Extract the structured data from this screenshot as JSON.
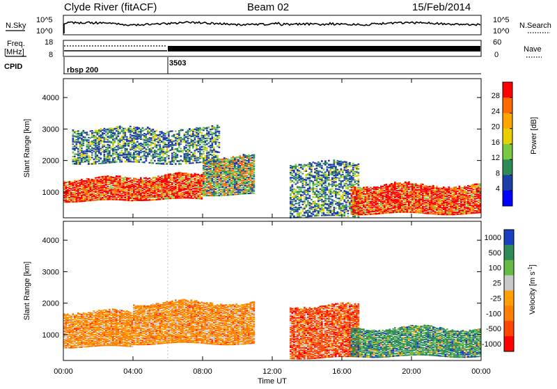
{
  "header": {
    "title": "Clyde River (fitACF)",
    "beam": "Beam 02",
    "date": "15/Feb/2014"
  },
  "top_panels": {
    "nsky_label": "N.Sky",
    "nsearch_label": "N.Search",
    "noise_ticks_left": [
      "10^5",
      "10^0"
    ],
    "noise_ticks_right": [
      "10^5",
      "10^0"
    ],
    "freq_label_line1": "Freq.",
    "freq_label_line2": "[MHz]",
    "freq_ticks": [
      "18",
      "8"
    ],
    "nave_label": "Nave",
    "nave_ticks": [
      "60",
      "0"
    ],
    "cpid_label": "CPID",
    "cpid_segments": [
      "rbsp 200",
      "3503"
    ]
  },
  "chart_data": [
    {
      "type": "heatmap",
      "title": "",
      "ylabel": "Slant Range [km]",
      "xlabel": "",
      "xlim": [
        "00:00",
        "24:00"
      ],
      "ylim": [
        180,
        4600
      ],
      "yticks": [
        "1000",
        "2000",
        "3000",
        "4000"
      ],
      "colorbar": {
        "label": "Power [dB]",
        "ticks": [
          "28",
          "24",
          "20",
          "16",
          "12",
          "8",
          "4"
        ],
        "colors": [
          "#ff0000",
          "#ff6a00",
          "#ffa500",
          "#e8d000",
          "#7ac943",
          "#2e8b57",
          "#1e3fa8",
          "#0000ff"
        ]
      },
      "regions": [
        {
          "x": [
            0.0,
            4.0
          ],
          "range": [
            700,
            1400
          ],
          "level": "high"
        },
        {
          "x": [
            4.0,
            8.0
          ],
          "range": [
            750,
            1500
          ],
          "level": "high"
        },
        {
          "x": [
            8.0,
            11.0
          ],
          "range": [
            900,
            2100
          ],
          "level": "medium"
        },
        {
          "x": [
            13.0,
            17.0
          ],
          "range": [
            200,
            1900
          ],
          "level": "low"
        },
        {
          "x": [
            16.5,
            24.0
          ],
          "range": [
            300,
            1200
          ],
          "level": "high"
        },
        {
          "x": [
            0.5,
            9.0
          ],
          "range": [
            1900,
            3000
          ],
          "level": "low"
        }
      ]
    },
    {
      "type": "heatmap",
      "title": "",
      "ylabel": "Slant Range [km]",
      "xlabel": "Time UT",
      "xlim": [
        "00:00",
        "24:00"
      ],
      "ylim": [
        180,
        4600
      ],
      "yticks": [
        "1000",
        "2000",
        "3000",
        "4000"
      ],
      "xticks": [
        "00:00",
        "04:00",
        "08:00",
        "12:00",
        "16:00",
        "20:00",
        "00:00"
      ],
      "colorbar": {
        "label": "Velocity [m s^-1]",
        "label_main": "Velocity [m s",
        "label_sup": "-1",
        "label_end": "]",
        "ticks": [
          "1000",
          "500",
          "100",
          "25",
          "-25",
          "-100",
          "-500",
          "-1000"
        ],
        "colors": [
          "#1a3fbf",
          "#2e8b57",
          "#66bb44",
          "#c8c8c8",
          "#ffa000",
          "#ff7f00",
          "#ff4500",
          "#ff0000"
        ]
      },
      "regions": [
        {
          "x": [
            0.0,
            4.0
          ],
          "range": [
            600,
            1700
          ],
          "velocity": "-100"
        },
        {
          "x": [
            4.0,
            11.0
          ],
          "range": [
            700,
            2000
          ],
          "velocity": "-100"
        },
        {
          "x": [
            13.0,
            17.0
          ],
          "range": [
            250,
            1900
          ],
          "velocity": "-500"
        },
        {
          "x": [
            16.5,
            24.0
          ],
          "range": [
            300,
            1200
          ],
          "velocity": "100"
        }
      ]
    }
  ],
  "colors": {
    "background": "#ffffff",
    "axis": "#000000"
  }
}
